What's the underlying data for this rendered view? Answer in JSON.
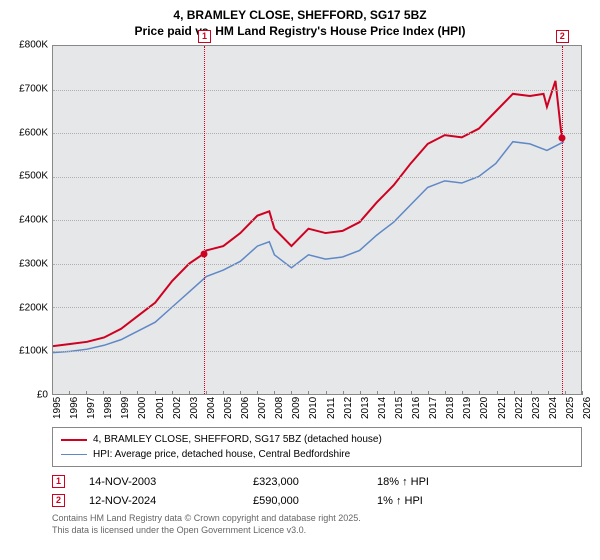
{
  "title_line1": "4, BRAMLEY CLOSE, SHEFFORD, SG17 5BZ",
  "title_line2": "Price paid vs. HM Land Registry's House Price Index (HPI)",
  "chart": {
    "type": "line",
    "background_color": "#e6e7e9",
    "grid_color": "#b0b0b0",
    "border_color": "#888888",
    "ylim": [
      0,
      800000
    ],
    "ytick_step": 100000,
    "y_labels": [
      "£0",
      "£100K",
      "£200K",
      "£300K",
      "£400K",
      "£500K",
      "£600K",
      "£700K",
      "£800K"
    ],
    "xlim": [
      1995,
      2026
    ],
    "x_ticks": [
      1995,
      1996,
      1997,
      1998,
      1999,
      2000,
      2001,
      2002,
      2003,
      2004,
      2005,
      2006,
      2007,
      2008,
      2009,
      2010,
      2011,
      2012,
      2013,
      2014,
      2015,
      2016,
      2017,
      2018,
      2019,
      2020,
      2021,
      2022,
      2023,
      2024,
      2025,
      2026
    ],
    "series": [
      {
        "name": "price_paid",
        "color": "#cf0020",
        "line_width": 2,
        "values": [
          [
            1995,
            110000
          ],
          [
            1996,
            115000
          ],
          [
            1997,
            120000
          ],
          [
            1998,
            130000
          ],
          [
            1999,
            150000
          ],
          [
            2000,
            180000
          ],
          [
            2001,
            210000
          ],
          [
            2002,
            260000
          ],
          [
            2003,
            300000
          ],
          [
            2003.87,
            323000
          ],
          [
            2004,
            330000
          ],
          [
            2005,
            340000
          ],
          [
            2006,
            370000
          ],
          [
            2007,
            410000
          ],
          [
            2007.7,
            420000
          ],
          [
            2008,
            380000
          ],
          [
            2009,
            340000
          ],
          [
            2010,
            380000
          ],
          [
            2011,
            370000
          ],
          [
            2012,
            375000
          ],
          [
            2013,
            395000
          ],
          [
            2014,
            440000
          ],
          [
            2015,
            480000
          ],
          [
            2016,
            530000
          ],
          [
            2017,
            575000
          ],
          [
            2018,
            595000
          ],
          [
            2019,
            590000
          ],
          [
            2020,
            610000
          ],
          [
            2021,
            650000
          ],
          [
            2022,
            690000
          ],
          [
            2023,
            685000
          ],
          [
            2023.8,
            690000
          ],
          [
            2024,
            660000
          ],
          [
            2024.5,
            720000
          ],
          [
            2024.87,
            590000
          ]
        ]
      },
      {
        "name": "hpi",
        "color": "#5f88c6",
        "line_width": 1.5,
        "values": [
          [
            1995,
            95000
          ],
          [
            1996,
            98000
          ],
          [
            1997,
            103000
          ],
          [
            1998,
            112000
          ],
          [
            1999,
            125000
          ],
          [
            2000,
            145000
          ],
          [
            2001,
            165000
          ],
          [
            2002,
            200000
          ],
          [
            2003,
            235000
          ],
          [
            2004,
            270000
          ],
          [
            2005,
            285000
          ],
          [
            2006,
            305000
          ],
          [
            2007,
            340000
          ],
          [
            2007.7,
            350000
          ],
          [
            2008,
            320000
          ],
          [
            2009,
            290000
          ],
          [
            2010,
            320000
          ],
          [
            2011,
            310000
          ],
          [
            2012,
            315000
          ],
          [
            2013,
            330000
          ],
          [
            2014,
            365000
          ],
          [
            2015,
            395000
          ],
          [
            2016,
            435000
          ],
          [
            2017,
            475000
          ],
          [
            2018,
            490000
          ],
          [
            2019,
            485000
          ],
          [
            2020,
            500000
          ],
          [
            2021,
            530000
          ],
          [
            2022,
            580000
          ],
          [
            2023,
            575000
          ],
          [
            2024,
            560000
          ],
          [
            2025,
            580000
          ]
        ]
      }
    ],
    "sale_markers": [
      {
        "idx": "1",
        "year": 2003.87,
        "value": 323000
      },
      {
        "idx": "2",
        "year": 2024.87,
        "value": 590000
      }
    ]
  },
  "legend": {
    "items": [
      {
        "color": "#cf0020",
        "width": 2,
        "label": "4, BRAMLEY CLOSE, SHEFFORD, SG17 5BZ (detached house)"
      },
      {
        "color": "#5f88c6",
        "width": 1.5,
        "label": "HPI: Average price, detached house, Central Bedfordshire"
      }
    ]
  },
  "sales": [
    {
      "idx": "1",
      "date": "14-NOV-2003",
      "price": "£323,000",
      "hpi": "18% ↑ HPI"
    },
    {
      "idx": "2",
      "date": "12-NOV-2024",
      "price": "£590,000",
      "hpi": "1% ↑ HPI"
    }
  ],
  "footer_line1": "Contains HM Land Registry data © Crown copyright and database right 2025.",
  "footer_line2": "This data is licensed under the Open Government Licence v3.0."
}
